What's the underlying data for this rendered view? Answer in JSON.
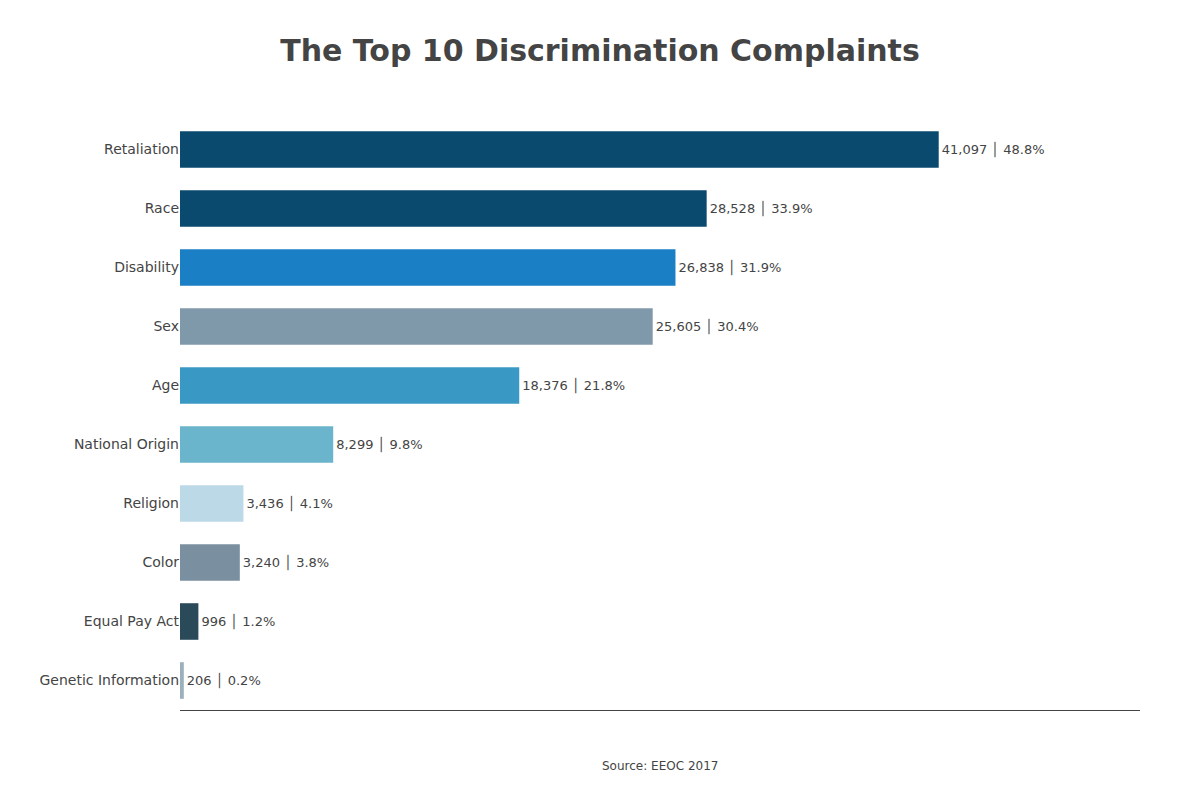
{
  "chart_data": {
    "type": "bar",
    "orientation": "horizontal",
    "title": "The Top 10 Discrimination Complaints",
    "categories": [
      "Retaliation",
      "Race",
      "Disability",
      "Sex",
      "Age",
      "National Origin",
      "Religion",
      "Color",
      "Equal Pay Act",
      "Genetic Information"
    ],
    "values": [
      41097,
      28528,
      26838,
      25605,
      18376,
      8299,
      3436,
      3240,
      996,
      206
    ],
    "value_labels": [
      "41,097 │ 48.8%",
      "28,528 │ 33.9%",
      "26,838 │ 31.9%",
      "25,605 │ 30.4%",
      "18,376 │ 21.8%",
      "8,299 │ 9.8%",
      "3,436 │ 4.1%",
      "3,240 │ 3.8%",
      "996 │ 1.2%",
      "206 │ 0.2%"
    ],
    "colors": [
      "#0a4a6e",
      "#0a4a6e",
      "#1a7fc4",
      "#8099aa",
      "#3a99c4",
      "#6ab4cc",
      "#bcd9e8",
      "#7a8fa0",
      "#2a4a5a",
      "#9ab0bb"
    ],
    "xlim": [
      0,
      52000
    ],
    "data_labels": true,
    "tick_labels": "y",
    "grid": false,
    "annotations": [
      "Source: EEOC 2017"
    ]
  }
}
